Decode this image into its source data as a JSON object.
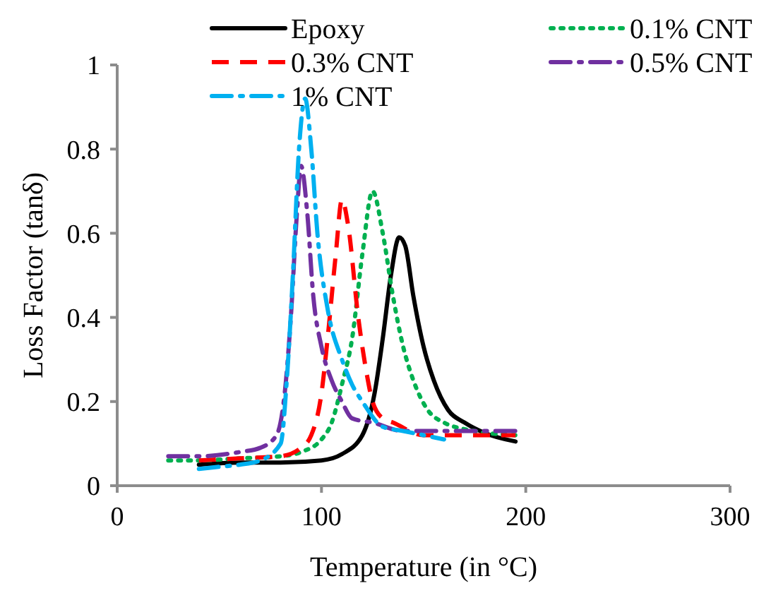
{
  "chart_data": {
    "type": "line",
    "xlabel": "Temperature (in °C)",
    "ylabel": "Loss Factor (tanδ)",
    "xlim": [
      0,
      300
    ],
    "xticks": [
      0,
      100,
      200,
      300
    ],
    "ylim": [
      0,
      1
    ],
    "yticks": [
      0,
      0.2,
      0.4,
      0.6,
      0.8,
      1
    ],
    "grid": false,
    "legend": "top",
    "marker": "none",
    "series": [
      {
        "name": "Epoxy",
        "color": "#000000",
        "line_style": "solid",
        "x": [
          40,
          60,
          80,
          100,
          110,
          120,
          126,
          130,
          134,
          138,
          141,
          145,
          150,
          155,
          162,
          170,
          180,
          195
        ],
        "values": [
          0.05,
          0.055,
          0.055,
          0.06,
          0.075,
          0.12,
          0.22,
          0.35,
          0.5,
          0.59,
          0.57,
          0.45,
          0.33,
          0.25,
          0.18,
          0.15,
          0.125,
          0.105
        ]
      },
      {
        "name": "0.1% CNT",
        "color": "#00b050",
        "line_style": "dotted",
        "x": [
          25,
          40,
          60,
          80,
          90,
          100,
          105,
          110,
          115,
          120,
          125,
          130,
          135,
          140,
          145,
          152,
          160,
          175,
          195
        ],
        "values": [
          0.06,
          0.06,
          0.065,
          0.07,
          0.08,
          0.11,
          0.15,
          0.24,
          0.35,
          0.55,
          0.7,
          0.6,
          0.45,
          0.33,
          0.25,
          0.18,
          0.15,
          0.13,
          0.12
        ]
      },
      {
        "name": "0.3% CNT",
        "color": "#ff0000",
        "line_style": "dashed",
        "x": [
          40,
          60,
          80,
          90,
          95,
          100,
          103,
          107,
          110,
          113,
          118,
          122,
          125,
          130,
          135,
          150,
          170,
          195
        ],
        "values": [
          0.06,
          0.065,
          0.07,
          0.09,
          0.12,
          0.22,
          0.35,
          0.55,
          0.68,
          0.62,
          0.4,
          0.27,
          0.2,
          0.16,
          0.15,
          0.12,
          0.12,
          0.12
        ]
      },
      {
        "name": "0.5% CNT",
        "color": "#7030a0",
        "line_style": "dashdot",
        "x": [
          25,
          40,
          60,
          70,
          78,
          82,
          85,
          88,
          90,
          93,
          96,
          100,
          105,
          110,
          115,
          125,
          140,
          160,
          195
        ],
        "values": [
          0.07,
          0.07,
          0.08,
          0.09,
          0.12,
          0.22,
          0.4,
          0.65,
          0.76,
          0.65,
          0.45,
          0.33,
          0.25,
          0.2,
          0.16,
          0.15,
          0.13,
          0.13,
          0.13
        ]
      },
      {
        "name": "1% CNT",
        "color": "#00b0f0",
        "line_style": "dashdot",
        "x": [
          40,
          50,
          60,
          70,
          80,
          83,
          86,
          89,
          92,
          95,
          98,
          103,
          110,
          115,
          120,
          130,
          140,
          150,
          160
        ],
        "values": [
          0.04,
          0.045,
          0.05,
          0.06,
          0.1,
          0.25,
          0.5,
          0.8,
          0.92,
          0.8,
          0.6,
          0.42,
          0.3,
          0.24,
          0.2,
          0.14,
          0.13,
          0.12,
          0.11
        ]
      }
    ]
  }
}
